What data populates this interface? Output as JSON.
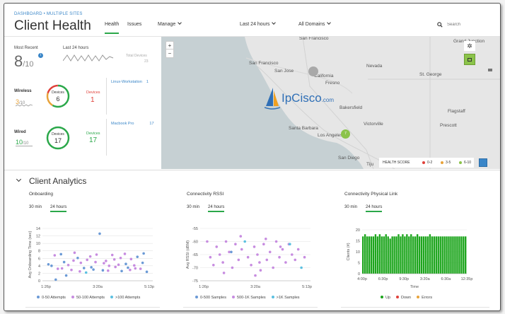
{
  "header": {
    "breadcrumb": "DASHBOARD • MULTIPLE SITES",
    "title": "Client Health",
    "nav": {
      "health": "Health",
      "issues": "Issues",
      "manage": "Manage",
      "time": "Last 24 hours",
      "domains": "All Domains"
    },
    "search_placeholder": "Search"
  },
  "summary": {
    "most_recent_label": "Most Recent",
    "score": "8",
    "score_den": "/10",
    "last24_label": "Last 24 hours",
    "total_devices_label": "Total Devices",
    "total_devices_value": "23"
  },
  "wireless": {
    "label": "Wireless",
    "score": "3",
    "score_den": "/10",
    "devices_label": "Devices",
    "devices_value": "6",
    "status_label": "Devices",
    "status_value": "1",
    "status_color": "#e0413a",
    "link_label": "Linux-Workstation",
    "link_value": "1",
    "score_color": "#e8a33a"
  },
  "wired": {
    "label": "Wired",
    "score": "10",
    "score_den": "/10",
    "devices_label": "Devices",
    "devices_value": "17",
    "status_label": "Devices",
    "status_value": "17",
    "status_color": "#2ba84a",
    "link_label": "Macbook Pro",
    "link_value": "17"
  },
  "map": {
    "zoom_in": "+",
    "zoom_out": "−",
    "cities": [
      "Grand Junction",
      "San Francisco",
      "San Jose",
      "California",
      "Fresno",
      "Nevada",
      "St. George",
      "Bakersfield",
      "Flagstaff",
      "Santa Barbara",
      "Los Angeles",
      "Victorville",
      "Prescott",
      "San Diego",
      "Tiju"
    ],
    "cluster_grey": "",
    "cluster_green": "7",
    "legend_title": "HEALTH SCORE",
    "legend_items": [
      {
        "label": "0-2",
        "color": "#e0413a"
      },
      {
        "label": "3-5",
        "color": "#e8a33a"
      },
      {
        "label": "6-10",
        "color": "#8bc34a"
      }
    ],
    "watermark": "IpCisco",
    "watermark_suffix": ".com"
  },
  "analytics": {
    "title": "Client Analytics",
    "tab_30": "30 min",
    "tab_24": "24 hours"
  },
  "chart_data": [
    {
      "type": "scatter",
      "title": "Onboarding",
      "xlabel": "",
      "ylabel": "Avg Onboarding Time (sec)",
      "x_ticks": [
        "1:26p",
        "3:20a",
        "5:13p"
      ],
      "y_ticks": [
        0,
        2,
        4,
        6,
        8,
        10,
        12,
        14
      ],
      "ylim": [
        0,
        14
      ],
      "legend": [
        {
          "name": "0-50 Attempts",
          "color": "#6b9ad6"
        },
        {
          "name": "50-100 Attempts",
          "color": "#c78ce0"
        },
        {
          "name": ">100 Attempts",
          "color": "#5bc0e0"
        }
      ],
      "points": [
        [
          0.03,
          4.4,
          0
        ],
        [
          0.06,
          4.0,
          0
        ],
        [
          0.09,
          6.8,
          1
        ],
        [
          0.12,
          3.2,
          1
        ],
        [
          0.15,
          7.1,
          0
        ],
        [
          0.18,
          5.0,
          0
        ],
        [
          0.22,
          4.2,
          1
        ],
        [
          0.25,
          2.9,
          1
        ],
        [
          0.28,
          7.5,
          1
        ],
        [
          0.31,
          6.1,
          0
        ],
        [
          0.34,
          4.8,
          1
        ],
        [
          0.37,
          3.4,
          0
        ],
        [
          0.4,
          5.6,
          1
        ],
        [
          0.43,
          6.5,
          1
        ],
        [
          0.46,
          3.0,
          0
        ],
        [
          0.49,
          7.0,
          1
        ],
        [
          0.52,
          12.6,
          0
        ],
        [
          0.55,
          2.8,
          0
        ],
        [
          0.58,
          5.3,
          1
        ],
        [
          0.61,
          4.0,
          1
        ],
        [
          0.64,
          6.9,
          1
        ],
        [
          0.67,
          3.7,
          1
        ],
        [
          0.7,
          4.3,
          1
        ],
        [
          0.73,
          2.6,
          0
        ],
        [
          0.76,
          7.2,
          1
        ],
        [
          0.79,
          3.5,
          0
        ],
        [
          0.82,
          5.8,
          1
        ],
        [
          0.85,
          4.1,
          1
        ],
        [
          0.88,
          6.4,
          0
        ],
        [
          0.91,
          3.2,
          1
        ],
        [
          0.94,
          7.3,
          0
        ],
        [
          0.97,
          2.4,
          0
        ],
        [
          0.1,
          0.3,
          0
        ],
        [
          0.2,
          1.4,
          0
        ],
        [
          0.33,
          2.5,
          1
        ],
        [
          0.44,
          3.6,
          0
        ],
        [
          0.56,
          4.7,
          1
        ],
        [
          0.66,
          5.7,
          1
        ],
        [
          0.77,
          4.5,
          0
        ],
        [
          0.86,
          3.3,
          1
        ],
        [
          0.27,
          5.4,
          1
        ],
        [
          0.6,
          2.7,
          1
        ],
        [
          0.72,
          6.1,
          1
        ],
        [
          0.39,
          2.2,
          2
        ],
        [
          0.16,
          3.3,
          1
        ],
        [
          0.48,
          5.0,
          1
        ],
        [
          0.81,
          2.9,
          1
        ],
        [
          0.93,
          4.8,
          0
        ]
      ]
    },
    {
      "type": "scatter",
      "title": "Connectivity RSSI",
      "xlabel": "",
      "ylabel": "Avg RSSI (dBM)",
      "x_ticks": [
        "1:26p",
        "3:20a",
        "5:13p"
      ],
      "y_ticks": [
        -55,
        -60,
        -65,
        -70,
        -75
      ],
      "ylim": [
        -75,
        -55
      ],
      "legend": [
        {
          "name": "0-500 Samples",
          "color": "#6b9ad6"
        },
        {
          "name": "500-1K Samples",
          "color": "#c78ce0"
        },
        {
          "name": ">1K Samples",
          "color": "#5bc0e0"
        }
      ],
      "points": [
        [
          0.04,
          -60,
          1
        ],
        [
          0.07,
          -66,
          1
        ],
        [
          0.1,
          -69,
          1
        ],
        [
          0.13,
          -62,
          1
        ],
        [
          0.16,
          -65,
          1
        ],
        [
          0.19,
          -68,
          1
        ],
        [
          0.22,
          -60,
          1
        ],
        [
          0.25,
          -64,
          1
        ],
        [
          0.28,
          -70,
          1
        ],
        [
          0.31,
          -61,
          1
        ],
        [
          0.34,
          -67,
          1
        ],
        [
          0.37,
          -63,
          1
        ],
        [
          0.4,
          -60,
          2
        ],
        [
          0.43,
          -66,
          1
        ],
        [
          0.46,
          -69,
          1
        ],
        [
          0.49,
          -62,
          1
        ],
        [
          0.52,
          -65,
          1
        ],
        [
          0.55,
          -71,
          1
        ],
        [
          0.58,
          -61,
          1
        ],
        [
          0.61,
          -67,
          1
        ],
        [
          0.64,
          -64,
          1
        ],
        [
          0.67,
          -70,
          1
        ],
        [
          0.7,
          -60,
          1
        ],
        [
          0.73,
          -66,
          1
        ],
        [
          0.76,
          -63,
          1
        ],
        [
          0.79,
          -68,
          1
        ],
        [
          0.82,
          -61,
          1
        ],
        [
          0.85,
          -65,
          1
        ],
        [
          0.88,
          -67,
          1
        ],
        [
          0.91,
          -63,
          1
        ],
        [
          0.94,
          -70,
          2
        ],
        [
          0.97,
          -66,
          1
        ],
        [
          0.2,
          -72,
          1
        ],
        [
          0.5,
          -73,
          1
        ],
        [
          0.36,
          -58,
          1
        ],
        [
          0.6,
          -59,
          1
        ],
        [
          0.83,
          -61,
          2
        ],
        [
          0.27,
          -64,
          0
        ],
        [
          0.54,
          -68,
          1
        ],
        [
          0.74,
          -62,
          1
        ]
      ]
    },
    {
      "type": "bar",
      "title": "Connectivity Physical Link",
      "xlabel": "Time",
      "ylabel": "Clients (#)",
      "x_ticks": [
        "4:00p",
        "6:30p",
        "9:30p",
        "3:20a",
        "6:30a",
        "12:35p"
      ],
      "y_ticks": [
        0,
        5,
        10,
        15,
        20
      ],
      "ylim": [
        0,
        20
      ],
      "legend": [
        {
          "name": "Up",
          "color": "#1ca51c"
        },
        {
          "name": "Down",
          "color": "#e0413a"
        },
        {
          "name": "Errors",
          "color": "#e8a33a"
        }
      ],
      "values": [
        17,
        18,
        17,
        17,
        17,
        17,
        18,
        17,
        18,
        17,
        17,
        18,
        17,
        16,
        17,
        17,
        17,
        18,
        17,
        18,
        17,
        18,
        17,
        18,
        17,
        17,
        18,
        17,
        17,
        17,
        17,
        17,
        18,
        17,
        17,
        17,
        17,
        17,
        17,
        17,
        17,
        17,
        17,
        17,
        17,
        17,
        17,
        17,
        17,
        17
      ]
    }
  ]
}
